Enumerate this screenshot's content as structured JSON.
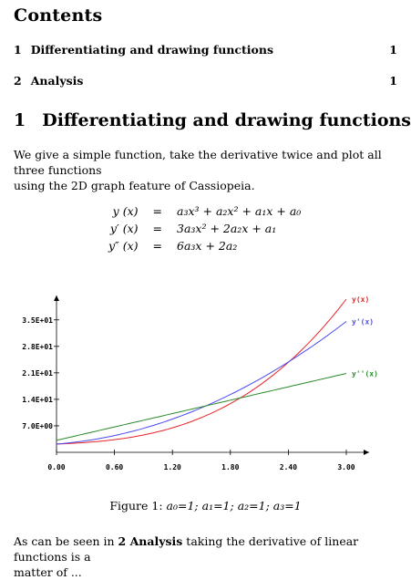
{
  "toc": {
    "title": "Contents",
    "entries": [
      {
        "number": "1",
        "label": "Differentiating and drawing functions",
        "page": "1"
      },
      {
        "number": "2",
        "label": "Analysis",
        "page": "1"
      }
    ]
  },
  "section": {
    "number": "1",
    "title": "Differentiating and drawing functions"
  },
  "intro_line1": "We give a simple function, take the derivative twice and plot all three functions",
  "intro_line2": "using the 2D graph feature of Cassiopeia.",
  "equations": [
    {
      "lhs": "y (x)",
      "rhs": "a₃x³ + a₂x² + a₁x + a₀"
    },
    {
      "lhs": "y′ (x)",
      "rhs": "3a₃x² + 2a₂x + a₁"
    },
    {
      "lhs": "y″ (x)",
      "rhs": "6a₃x + 2a₂"
    }
  ],
  "chart_data": {
    "type": "line",
    "title": "",
    "xlabel": "",
    "ylabel": "",
    "xlim": [
      0,
      3.0
    ],
    "ylim": [
      0,
      40
    ],
    "x_ticks": [
      "0.00",
      "0.60",
      "1.20",
      "1.80",
      "2.40",
      "3.00"
    ],
    "y_ticks": [
      "7.0E+00",
      "1.4E+01",
      "2.1E+01",
      "2.8E+01",
      "3.5E+01"
    ],
    "grid": false,
    "series": [
      {
        "name": "y(x)",
        "color": "#e8242a",
        "coefficients": {
          "a0": 1,
          "a1": 1,
          "a2": 1,
          "a3": 1
        }
      },
      {
        "name": "y'(x)",
        "color": "#4b4bf0"
      },
      {
        "name": "y''(x)",
        "color": "#2a8a2a"
      }
    ]
  },
  "caption": {
    "label": "Figure 1:",
    "text": "a₀=1; a₁=1; a₂=1; a₃=1"
  },
  "closing_line1_pre": "As can be seen in",
  "closing_ref": "2 Analysis",
  "closing_line1_post": "taking the derivative of linear functions is a",
  "closing_line2": "matter of ..."
}
